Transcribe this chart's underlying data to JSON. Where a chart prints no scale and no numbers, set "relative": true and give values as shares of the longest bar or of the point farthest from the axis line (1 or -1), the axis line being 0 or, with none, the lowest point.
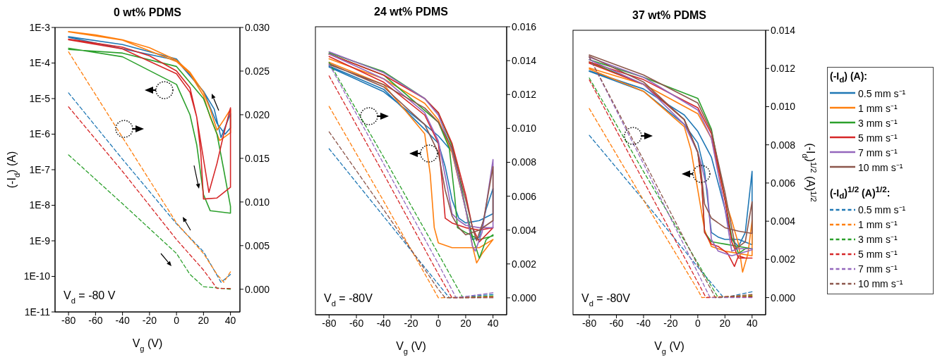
{
  "chart_data": [
    {
      "type": "line",
      "title": "0 wt% PDMS",
      "xlabel": "V$_{g}$ (V)",
      "ylabel": "(-I$_{d}$) (A)",
      "log": "y",
      "xlim": [
        -90,
        47
      ],
      "xticks": [
        -80,
        -60,
        -40,
        -20,
        0,
        20,
        40
      ],
      "ylim": [
        1e-11,
        0.001
      ],
      "yticks": [
        {
          "value": 1e-11,
          "label": "1E-11"
        },
        {
          "value": 1e-10,
          "label": "1E-10"
        },
        {
          "value": 1e-09,
          "label": "1E-9"
        },
        {
          "value": 1e-08,
          "label": "1E-8"
        },
        {
          "value": 1e-07,
          "label": "1E-7"
        },
        {
          "value": 1e-06,
          "label": "1E-6"
        },
        {
          "value": 1e-05,
          "label": "1E-5"
        },
        {
          "value": 0.0001,
          "label": "1E-4"
        },
        {
          "value": 0.001,
          "label": "1E-3"
        }
      ],
      "y2lim": [
        -0.0026,
        0.03
      ],
      "y2ticks": [
        {
          "value": 0,
          "label": "0.000"
        },
        {
          "value": 0.005,
          "label": "0.005"
        },
        {
          "value": 0.01,
          "label": "0.010"
        },
        {
          "value": 0.015,
          "label": "0.015"
        },
        {
          "value": 0.02,
          "label": "0.020"
        },
        {
          "value": 0.025,
          "label": "0.025"
        },
        {
          "value": 0.03,
          "label": "0.030"
        }
      ],
      "annotations": [
        "V$_{d}$ = -80 V"
      ],
      "series": [
        {
          "color": "#1f77b4",
          "x": [
            -80,
            -40,
            0,
            20,
            28,
            33,
            40,
            40,
            36,
            30,
            20,
            0,
            -80
          ],
          "values": [
            0.00055,
            0.00033,
            0.00013,
            1.6e-05,
            5e-06,
            8e-07,
            3.8e-06,
            1.5e-06,
            1e-06,
            2e-06,
            1.6e-05,
            0.00012,
            0.00053
          ]
        },
        {
          "color": "#ff7f0e",
          "x": [
            -80,
            -60,
            -40,
            -20,
            0,
            10,
            20,
            25,
            30,
            35,
            40,
            40,
            32,
            25,
            20,
            10,
            0,
            -40,
            -80
          ],
          "values": [
            0.00077,
            0.00062,
            0.00045,
            0.00027,
            0.00012,
            5.5e-05,
            1.5e-05,
            5e-06,
            1.3e-06,
            2.5e-06,
            5e-06,
            1.1e-06,
            6.6e-07,
            3e-06,
            1.2e-05,
            5e-05,
            0.00011,
            0.00044,
            0.00075
          ]
        },
        {
          "color": "#2ca02c",
          "x": [
            -80,
            -40,
            0,
            10,
            15,
            20,
            25,
            40,
            40,
            35,
            30,
            20,
            0,
            -40,
            -80
          ],
          "values": [
            0.00026,
            0.00015,
            2.5e-05,
            3.5e-06,
            5e-07,
            2e-08,
            7e-09,
            6e-09,
            9.3e-09,
            1e-07,
            1e-06,
            1e-05,
            8e-05,
            0.00019,
            0.00024
          ]
        },
        {
          "color": "#d62728",
          "x": [
            -80,
            -40,
            -20,
            0,
            10,
            15,
            20,
            24,
            30,
            35,
            40,
            40,
            30,
            20,
            18,
            15,
            10,
            0,
            -40,
            -80
          ],
          "values": [
            0.00047,
            0.00028,
            0.00016,
            6e-05,
            2e-05,
            3e-06,
            2e-07,
            2.3e-08,
            1.5e-07,
            1e-06,
            5.5e-06,
            3.2e-08,
            1.6e-08,
            1.5e-08,
            3e-07,
            3e-06,
            1.5e-05,
            5e-05,
            0.00025,
            0.00045
          ]
        },
        {
          "color": "#1f77b4",
          "axis": "y2",
          "line_style": "dashed",
          "x": [
            -80,
            -40,
            0,
            20,
            33,
            40
          ],
          "values": [
            0.0225,
            0.0149,
            0.0075,
            0.0043,
            0.0008,
            0.0017
          ]
        },
        {
          "color": "#ff7f0e",
          "axis": "y2",
          "line_style": "dashed",
          "x": [
            -80,
            -40,
            0,
            20,
            30,
            35,
            40
          ],
          "values": [
            0.0272,
            0.0174,
            0.0076,
            0.0041,
            0.0017,
            0.0008,
            0.002
          ]
        },
        {
          "color": "#2ca02c",
          "axis": "y2",
          "line_style": "dashed",
          "x": [
            -80,
            -40,
            0,
            10,
            20,
            40
          ],
          "values": [
            0.0154,
            0.0098,
            0.0041,
            0.0017,
            0.0003,
            0
          ]
        },
        {
          "color": "#d62728",
          "axis": "y2",
          "line_style": "dashed",
          "x": [
            -80,
            -40,
            0,
            20,
            30,
            40
          ],
          "values": [
            0.0209,
            0.0135,
            0.0057,
            0.0022,
            0.0001,
            0.0001
          ]
        }
      ]
    },
    {
      "type": "line",
      "title": "24 wt% PDMS",
      "xlabel": "V$_{g}$ (V)",
      "relative": true,
      "xlim": [
        -90,
        50
      ],
      "xticks": [
        -80,
        -60,
        -40,
        -20,
        0,
        20,
        40
      ],
      "y2lim": [
        -0.001,
        0.016
      ],
      "y2ticks": [
        {
          "value": 0,
          "label": "0.000"
        },
        {
          "value": 0.002,
          "label": "0.002"
        },
        {
          "value": 0.004,
          "label": "0.004"
        },
        {
          "value": 0.006,
          "label": "0.006"
        },
        {
          "value": 0.008,
          "label": "0.008"
        },
        {
          "value": 0.01,
          "label": "0.010"
        },
        {
          "value": 0.012,
          "label": "0.012"
        },
        {
          "value": 0.014,
          "label": "0.014"
        },
        {
          "value": 0.016,
          "label": "0.016"
        }
      ],
      "annotations": [
        "V$_{d}$ = -80V"
      ],
      "series": [
        {
          "color": "#1f77b4",
          "x": [
            -80,
            -40,
            -10,
            0,
            10,
            20,
            25,
            30,
            35,
            40,
            40,
            30,
            20,
            15,
            10,
            5,
            0,
            -10,
            -40,
            -80
          ],
          "values": [
            0.942,
            0.848,
            0.723,
            0.68,
            0.62,
            0.4,
            0.286,
            0.295,
            0.402,
            0.48,
            0.384,
            0.358,
            0.349,
            0.367,
            0.438,
            0.563,
            0.652,
            0.705,
            0.857,
            0.946
          ]
        },
        {
          "color": "#ff7f0e",
          "x": [
            -80,
            -40,
            -10,
            0,
            10,
            20,
            25,
            28,
            32,
            40,
            40,
            30,
            10,
            0,
            -3,
            -6,
            -10,
            -40,
            -80
          ],
          "values": [
            0.973,
            0.897,
            0.804,
            0.741,
            0.616,
            0.402,
            0.26,
            0.197,
            0.232,
            0.286,
            0.286,
            0.255,
            0.255,
            0.273,
            0.331,
            0.536,
            0.688,
            0.875,
            0.96
          ]
        },
        {
          "color": "#2ca02c",
          "x": [
            -80,
            -40,
            -10,
            0,
            10,
            15,
            20,
            25,
            30,
            35,
            40,
            40,
            30,
            20,
            14,
            12,
            8,
            0,
            -40,
            -80
          ],
          "values": [
            0.996,
            0.924,
            0.822,
            0.768,
            0.643,
            0.536,
            0.402,
            0.295,
            0.215,
            0.286,
            0.304,
            0.3,
            0.286,
            0.313,
            0.331,
            0.447,
            0.634,
            0.732,
            0.911,
            0.991
          ]
        },
        {
          "color": "#d62728",
          "x": [
            -80,
            -40,
            -10,
            0,
            10,
            20,
            25,
            30,
            40,
            40,
            30,
            20,
            10,
            5,
            3,
            0,
            -10,
            -40,
            -80
          ],
          "values": [
            0.991,
            0.911,
            0.822,
            0.768,
            0.652,
            0.456,
            0.331,
            0.277,
            0.331,
            0.331,
            0.322,
            0.331,
            0.349,
            0.367,
            0.492,
            0.652,
            0.759,
            0.884,
            0.982
          ]
        },
        {
          "color": "#9467bd",
          "x": [
            -80,
            -40,
            -10,
            0,
            10,
            20,
            25,
            27,
            32,
            40,
            40,
            30,
            20,
            15,
            10,
            7,
            3,
            0,
            -10,
            -40,
            -80
          ],
          "values": [
            1,
            0.92,
            0.822,
            0.759,
            0.625,
            0.402,
            0.26,
            0.242,
            0.313,
            0.59,
            0.331,
            0.331,
            0.34,
            0.358,
            0.384,
            0.474,
            0.581,
            0.661,
            0.768,
            0.897,
            0.991
          ]
        },
        {
          "color": "#8c564b",
          "x": [
            -80,
            -40,
            -10,
            0,
            10,
            20,
            25,
            28,
            33,
            40,
            40,
            30,
            20,
            15,
            10,
            5,
            0,
            -10,
            -40,
            -80
          ],
          "values": [
            0.951,
            0.875,
            0.786,
            0.732,
            0.634,
            0.438,
            0.331,
            0.282,
            0.358,
            0.563,
            0.358,
            0.322,
            0.304,
            0.331,
            0.376,
            0.474,
            0.616,
            0.723,
            0.866,
            0.955
          ]
        },
        {
          "color": "#1f77b4",
          "axis": "y2",
          "line_style": "dashed",
          "x": [
            -80,
            -40,
            0,
            8,
            40
          ],
          "values": [
            0.0088,
            0.0048,
            0.0008,
            0,
            0.0002
          ]
        },
        {
          "color": "#ff7f0e",
          "axis": "y2",
          "line_style": "dashed",
          "x": [
            -80,
            -40,
            0,
            40
          ],
          "values": [
            0.0113,
            0.0057,
            0,
            8e-05
          ]
        },
        {
          "color": "#2ca02c",
          "axis": "y2",
          "line_style": "dashed",
          "x": [
            -80,
            -40,
            0,
            18,
            40
          ],
          "values": [
            0.0139,
            0.0083,
            0.0026,
            0,
            0.00012
          ]
        },
        {
          "color": "#d62728",
          "axis": "y2",
          "line_style": "dashed",
          "x": [
            -80,
            -40,
            0,
            10,
            40
          ],
          "values": [
            0.0131,
            0.0073,
            0.0014,
            0,
            4e-05
          ]
        },
        {
          "color": "#9467bd",
          "axis": "y2",
          "line_style": "dashed",
          "x": [
            -80,
            -40,
            0,
            13,
            40
          ],
          "values": [
            0.0138,
            0.0079,
            0.002,
            0,
            0.0003
          ]
        },
        {
          "color": "#8c564b",
          "axis": "y2",
          "line_style": "dashed",
          "x": [
            -80,
            -40,
            0,
            5,
            40
          ],
          "values": [
            0.0098,
            0.0052,
            0.0005,
            0,
            0
          ]
        }
      ]
    },
    {
      "type": "line",
      "title": "37 wt% PDMS",
      "xlabel": "V$_{g}$ (V)",
      "y2label": "(-I$_{d}$)$^{1/2}$ (A)$^{1/2}$",
      "relative": true,
      "xlim": [
        -92,
        50
      ],
      "xticks": [
        -80,
        -60,
        -40,
        -20,
        0,
        20,
        40
      ],
      "y2lim": [
        -0.0009,
        0.014
      ],
      "y2ticks": [
        {
          "value": 0,
          "label": "0.000"
        },
        {
          "value": 0.002,
          "label": "0.002"
        },
        {
          "value": 0.004,
          "label": "0.004"
        },
        {
          "value": 0.006,
          "label": "0.006"
        },
        {
          "value": 0.008,
          "label": "0.008"
        },
        {
          "value": 0.01,
          "label": "0.010"
        },
        {
          "value": 0.012,
          "label": "0.012"
        },
        {
          "value": 0.014,
          "label": "0.014"
        }
      ],
      "legend": "right",
      "legend_title": "(-I$_{d}$) (A):",
      "annotations": [
        "V$_{d}$ = -80V",
        "(-I$_{d}$)$^{1/2}$ (A)$^{1/2}$:"
      ],
      "series": [
        {
          "name": "0.5 mm s⁻¹",
          "color": "#1f77b4",
          "x": [
            -80,
            -40,
            -10,
            0,
            10,
            20,
            25,
            30,
            35,
            40,
            40,
            30,
            20,
            15,
            10,
            8,
            5,
            0,
            -10,
            -40,
            -80
          ],
          "values": [
            0.939,
            0.869,
            0.769,
            0.706,
            0.607,
            0.407,
            0.29,
            0.263,
            0.317,
            0.552,
            0.27,
            0.29,
            0.29,
            0.299,
            0.317,
            0.408,
            0.552,
            0.661,
            0.733,
            0.86,
            0.937
          ]
        },
        {
          "name": "1 mm s⁻¹",
          "color": "#ff7f0e",
          "x": [
            -80,
            -40,
            0,
            10,
            20,
            25,
            30,
            33,
            37,
            40,
            40,
            30,
            20,
            10,
            5,
            0,
            -5,
            -10,
            -40,
            -80
          ],
          "values": [
            0.95,
            0.887,
            0.774,
            0.679,
            0.444,
            0.363,
            0.272,
            0.164,
            0.236,
            0.363,
            0.227,
            0.236,
            0.245,
            0.263,
            0.326,
            0.48,
            0.634,
            0.724,
            0.86,
            0.946
          ]
        },
        {
          "name": "3 mm s⁻¹",
          "color": "#2ca02c",
          "x": [
            -80,
            -40,
            0,
            10,
            20,
            25,
            30,
            35,
            40,
            40,
            30,
            20,
            10,
            5,
            3,
            0,
            -10,
            -40,
            -80
          ],
          "values": [
            0.982,
            0.914,
            0.833,
            0.715,
            0.444,
            0.299,
            0.236,
            0.254,
            0.254,
            0.254,
            0.263,
            0.272,
            0.281,
            0.317,
            0.498,
            0.625,
            0.751,
            0.887,
            0.973
          ]
        },
        {
          "name": "5 mm s⁻¹",
          "color": "#d62728",
          "x": [
            -80,
            -40,
            0,
            10,
            20,
            25,
            30,
            40,
            40,
            35,
            30,
            27,
            22,
            15,
            10,
            5,
            3,
            0,
            -10,
            -40,
            -80
          ],
          "values": [
            0.973,
            0.905,
            0.797,
            0.697,
            0.444,
            0.281,
            0.218,
            0.218,
            0.218,
            0.218,
            0.227,
            0.186,
            0.236,
            0.263,
            0.272,
            0.317,
            0.498,
            0.625,
            0.751,
            0.887,
            0.968
          ]
        },
        {
          "name": "7 mm s⁻¹",
          "color": "#9467bd",
          "x": [
            -80,
            -40,
            0,
            10,
            20,
            25,
            30,
            40,
            40,
            25,
            20,
            15,
            10,
            7,
            3,
            0,
            -10,
            -40,
            -80
          ],
          "values": [
            0.991,
            0.914,
            0.788,
            0.679,
            0.408,
            0.245,
            0.254,
            0.254,
            0.25,
            0.227,
            0.236,
            0.245,
            0.29,
            0.48,
            0.571,
            0.625,
            0.733,
            0.887,
            0.982
          ]
        },
        {
          "name": "10 mm s⁻¹",
          "color": "#8c564b",
          "x": [
            -80,
            -40,
            0,
            10,
            20,
            25,
            28,
            35,
            40,
            40,
            30,
            20,
            10,
            5,
            2,
            0,
            -10,
            -40,
            -80
          ],
          "values": [
            1,
            0.923,
            0.815,
            0.706,
            0.471,
            0.335,
            0.254,
            0.281,
            0.435,
            0.313,
            0.322,
            0.335,
            0.372,
            0.426,
            0.571,
            0.625,
            0.751,
            0.896,
            0.995
          ]
        },
        {
          "name": "0.5 mm s⁻¹",
          "color": "#1f77b4",
          "axis": "y2",
          "line_style": "dashed",
          "x": [
            -80,
            -40,
            0,
            19,
            40
          ],
          "values": [
            0.0085,
            0.0051,
            0.0016,
            0,
            0.0003
          ]
        },
        {
          "name": "1 mm s⁻¹",
          "color": "#ff7f0e",
          "axis": "y2",
          "line_style": "dashed",
          "x": [
            -80,
            -40,
            0,
            3,
            40
          ],
          "values": [
            0.0099,
            0.0051,
            0.0004,
            0,
            0.00012
          ]
        },
        {
          "name": "3 mm s⁻¹",
          "color": "#2ca02c",
          "axis": "y2",
          "line_style": "dashed",
          "x": [
            -80,
            -40,
            0,
            15,
            40
          ],
          "values": [
            0.0115,
            0.0066,
            0.0018,
            0,
            8e-05
          ]
        },
        {
          "name": "5 mm s⁻¹",
          "color": "#d62728",
          "axis": "y2",
          "line_style": "dashed",
          "x": [
            -80,
            -40,
            0,
            6,
            40
          ],
          "values": [
            0.0114,
            0.0061,
            0.0008,
            0,
            4e-05
          ]
        },
        {
          "name": "7 mm s⁻¹",
          "color": "#9467bd",
          "axis": "y2",
          "line_style": "dashed",
          "x": [
            -80,
            -40,
            0,
            9,
            40
          ],
          "values": [
            0.0126,
            0.007,
            0.0013,
            0,
            0
          ]
        },
        {
          "name": "10 mm s⁻¹",
          "color": "#8c564b",
          "axis": "y2",
          "line_style": "dashed",
          "x": [
            -80,
            -40,
            0,
            13,
            40
          ],
          "values": [
            0.0126,
            0.0072,
            0.0017,
            0,
            0.00016
          ]
        }
      ]
    }
  ]
}
